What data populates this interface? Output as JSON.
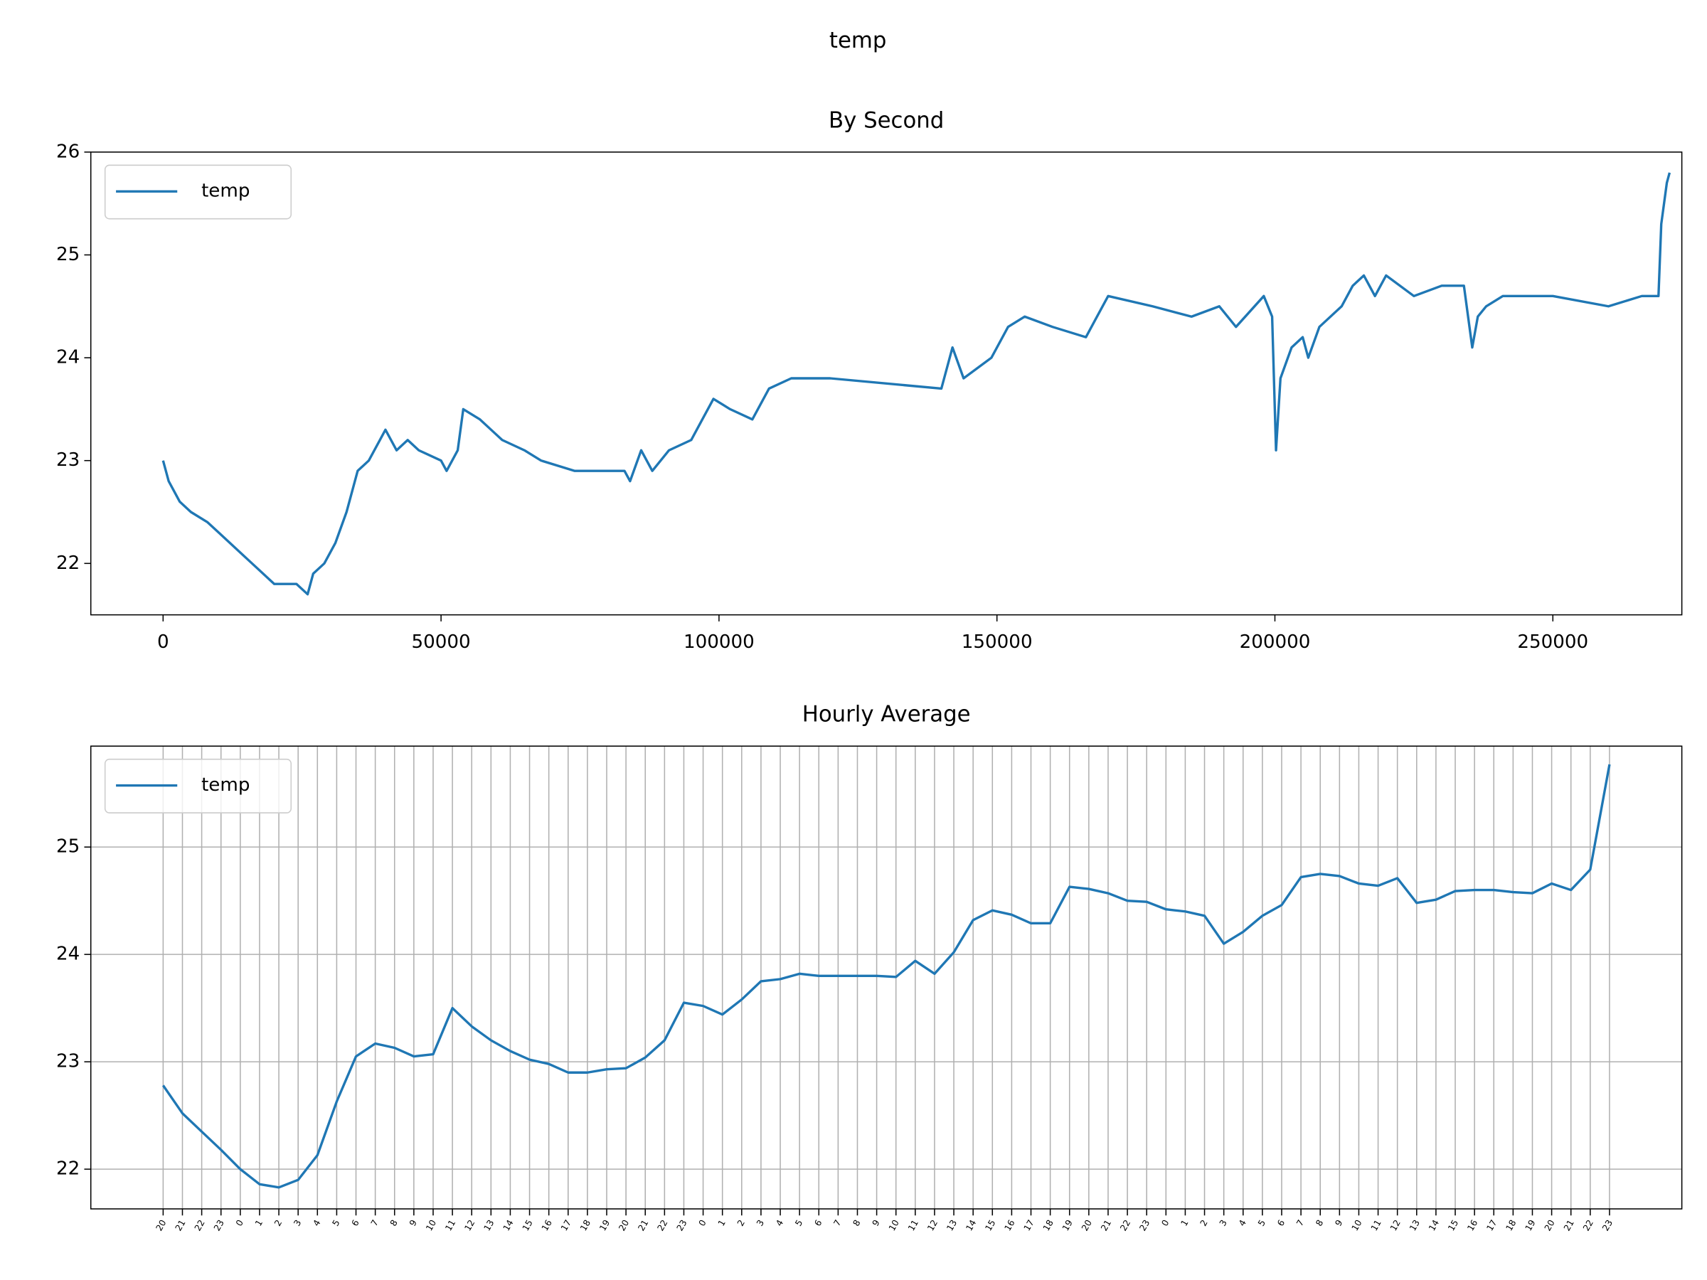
{
  "title": "temp",
  "chart_data": [
    {
      "type": "line",
      "title": "By Second",
      "legend": "upper left",
      "grid": false,
      "xlim": [
        -13000,
        273200
      ],
      "xticks": [
        0,
        50000,
        100000,
        150000,
        200000,
        250000
      ],
      "ylim": [
        21.5,
        26
      ],
      "yticks": [
        22,
        23,
        24,
        25,
        26
      ],
      "x": [
        0,
        1000,
        3000,
        5000,
        8000,
        10000,
        12000,
        14000,
        16000,
        18000,
        20000,
        24000,
        26000,
        27000,
        29000,
        31000,
        33000,
        35000,
        37000,
        39000,
        40000,
        42000,
        44000,
        46000,
        50000,
        51000,
        53000,
        54000,
        57000,
        59000,
        61000,
        65000,
        68000,
        74000,
        83000,
        84000,
        86000,
        88000,
        91000,
        95000,
        97000,
        99000,
        102000,
        106000,
        109000,
        113000,
        120000,
        140000,
        142000,
        144000,
        149000,
        152000,
        155000,
        160000,
        166000,
        168000,
        170000,
        178000,
        185000,
        190000,
        193000,
        198000,
        199500,
        200200,
        201000,
        203000,
        205000,
        206000,
        208000,
        212000,
        214000,
        216000,
        218000,
        220000,
        225000,
        230000,
        234000,
        235500,
        236500,
        238000,
        241000,
        250000,
        260000,
        266000,
        269000,
        269500,
        270500,
        271000
      ],
      "series": [
        {
          "name": "temp",
          "color": "#1f77b4",
          "values": [
            23.0,
            22.8,
            22.6,
            22.5,
            22.4,
            22.3,
            22.2,
            22.1,
            22.0,
            21.9,
            21.8,
            21.8,
            21.7,
            21.9,
            22.0,
            22.2,
            22.5,
            22.9,
            23.0,
            23.2,
            23.3,
            23.1,
            23.2,
            23.1,
            23.0,
            22.9,
            23.1,
            23.5,
            23.4,
            23.3,
            23.2,
            23.1,
            23.0,
            22.9,
            22.9,
            22.8,
            23.1,
            22.9,
            23.1,
            23.2,
            23.4,
            23.6,
            23.5,
            23.4,
            23.7,
            23.8,
            23.8,
            23.7,
            24.1,
            23.8,
            24.0,
            24.3,
            24.4,
            24.3,
            24.2,
            24.4,
            24.6,
            24.5,
            24.4,
            24.5,
            24.3,
            24.6,
            24.4,
            23.1,
            23.8,
            24.1,
            24.2,
            24.0,
            24.3,
            24.5,
            24.7,
            24.8,
            24.6,
            24.8,
            24.6,
            24.7,
            24.7,
            24.1,
            24.4,
            24.5,
            24.6,
            24.6,
            24.5,
            24.6,
            24.6,
            25.3,
            25.7,
            25.8
          ]
        }
      ]
    },
    {
      "type": "line",
      "title": "Hourly Average",
      "legend": "upper left",
      "grid": true,
      "ylim": [
        21.63,
        25.94
      ],
      "yticks": [
        22,
        23,
        24,
        25
      ],
      "categories": [
        "20",
        "21",
        "22",
        "23",
        "0",
        "1",
        "2",
        "3",
        "4",
        "5",
        "6",
        "7",
        "8",
        "9",
        "10",
        "11",
        "12",
        "13",
        "14",
        "15",
        "16",
        "17",
        "18",
        "19",
        "20",
        "21",
        "22",
        "23",
        "0",
        "1",
        "2",
        "3",
        "4",
        "5",
        "6",
        "7",
        "8",
        "9",
        "10",
        "11",
        "12",
        "13",
        "14",
        "15",
        "16",
        "17",
        "18",
        "19",
        "20",
        "21",
        "22",
        "23",
        "0",
        "1",
        "2",
        "3",
        "4",
        "5",
        "6",
        "7",
        "8",
        "9",
        "10",
        "11",
        "12",
        "13",
        "14",
        "15",
        "16",
        "17",
        "18",
        "19",
        "20",
        "21",
        "22",
        "23"
      ],
      "series": [
        {
          "name": "temp",
          "color": "#1f77b4",
          "values": [
            22.78,
            22.52,
            22.35,
            22.18,
            22.0,
            21.86,
            21.83,
            21.9,
            22.13,
            22.63,
            23.05,
            23.17,
            23.13,
            23.05,
            23.07,
            23.5,
            23.33,
            23.2,
            23.1,
            23.02,
            22.98,
            22.9,
            22.9,
            22.93,
            22.94,
            23.04,
            23.2,
            23.55,
            23.52,
            23.44,
            23.58,
            23.75,
            23.77,
            23.82,
            23.8,
            23.8,
            23.8,
            23.8,
            23.79,
            23.94,
            23.82,
            24.02,
            24.32,
            24.41,
            24.37,
            24.29,
            24.29,
            24.63,
            24.61,
            24.57,
            24.5,
            24.49,
            24.42,
            24.4,
            24.36,
            24.1,
            24.21,
            24.36,
            24.46,
            24.72,
            24.75,
            24.73,
            24.66,
            24.64,
            24.71,
            24.48,
            24.51,
            24.59,
            24.6,
            24.6,
            24.58,
            24.57,
            24.66,
            24.6,
            24.79,
            25.77
          ]
        }
      ]
    }
  ]
}
